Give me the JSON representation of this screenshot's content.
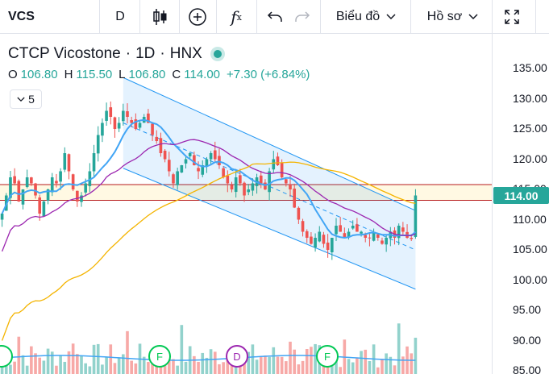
{
  "toolbar": {
    "symbol": "VCS",
    "interval": "D",
    "chart_menu": "Biểu đồ",
    "profile_menu": "Hồ sơ"
  },
  "legend": {
    "title": "CTCP Vicostone",
    "interval": "1D",
    "exchange": "HNX",
    "open_label": "O",
    "open": "106.80",
    "high_label": "H",
    "high": "115.50",
    "low_label": "L",
    "low": "106.80",
    "close_label": "C",
    "close": "114.00",
    "change": "+7.30 (+6.84%)",
    "indicator_value": "5"
  },
  "price_axis": {
    "ticks": [
      "135.00",
      "130.00",
      "125.00",
      "120.00",
      "115.00",
      "110.00",
      "105.00",
      "100.00",
      "95.00",
      "90.00",
      "85.00"
    ],
    "current_price": "114.00"
  },
  "colors": {
    "up": "#26a69a",
    "down": "#ef5350",
    "ma_fast": "#42a5f5",
    "ma_mid": "#9c27b0",
    "ma_slow": "#f4b400",
    "channel": "#2196f3"
  },
  "icons": [
    "candles-icon",
    "plus-circle-icon",
    "fx-icon",
    "undo-icon",
    "redo-icon",
    "chevron-down-icon",
    "fullscreen-icon"
  ],
  "event_markers": [
    "F",
    "D",
    "F"
  ],
  "chart_data": {
    "type": "line",
    "description_units": "price (VND thousands)",
    "ylim": [
      85,
      137
    ],
    "closes": [
      111,
      114,
      117,
      116,
      113,
      115,
      117,
      116,
      114,
      111,
      113,
      115,
      117,
      116,
      118,
      121,
      118,
      115,
      113,
      114,
      116,
      118,
      121,
      124,
      126,
      128,
      127,
      125,
      126,
      128,
      127,
      126,
      125,
      126,
      127,
      126,
      124,
      123,
      121,
      120,
      118,
      116,
      118,
      119,
      120,
      121,
      119,
      118,
      119,
      120,
      121,
      120,
      119,
      117,
      116,
      115,
      117,
      116,
      114,
      115,
      116,
      117,
      116,
      115,
      118,
      120,
      119,
      117,
      116,
      115,
      112,
      110,
      108,
      107,
      106,
      107,
      108,
      106,
      105,
      107,
      109,
      108,
      107,
      108,
      109,
      108,
      108,
      107,
      107,
      108,
      107,
      106,
      107,
      108,
      107,
      109,
      108,
      107,
      106.8,
      114
    ],
    "current": 114
  }
}
